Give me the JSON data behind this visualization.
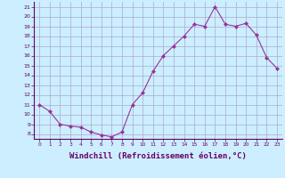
{
  "x": [
    0,
    1,
    2,
    3,
    4,
    5,
    6,
    7,
    8,
    9,
    10,
    11,
    12,
    13,
    14,
    15,
    16,
    17,
    18,
    19,
    20,
    21,
    22,
    23
  ],
  "y": [
    11.0,
    10.3,
    9.0,
    8.8,
    8.7,
    8.2,
    7.9,
    7.7,
    8.2,
    11.0,
    12.2,
    14.4,
    16.0,
    17.0,
    18.0,
    19.2,
    19.0,
    21.0,
    19.2,
    19.0,
    19.3,
    18.1,
    15.8,
    14.7
  ],
  "line_color": "#993399",
  "marker": "D",
  "marker_size": 2,
  "bg_color": "#cceeff",
  "grid_color": "#aaaacc",
  "xlabel": "Windchill (Refroidissement éolien,°C)",
  "xlabel_fontsize": 6.5,
  "yticks": [
    8,
    9,
    10,
    11,
    12,
    13,
    14,
    15,
    16,
    17,
    18,
    19,
    20,
    21
  ],
  "xticks": [
    0,
    1,
    2,
    3,
    4,
    5,
    6,
    7,
    8,
    9,
    10,
    11,
    12,
    13,
    14,
    15,
    16,
    17,
    18,
    19,
    20,
    21,
    22,
    23
  ],
  "ylim": [
    7.5,
    21.5
  ],
  "xlim": [
    -0.5,
    23.5
  ]
}
